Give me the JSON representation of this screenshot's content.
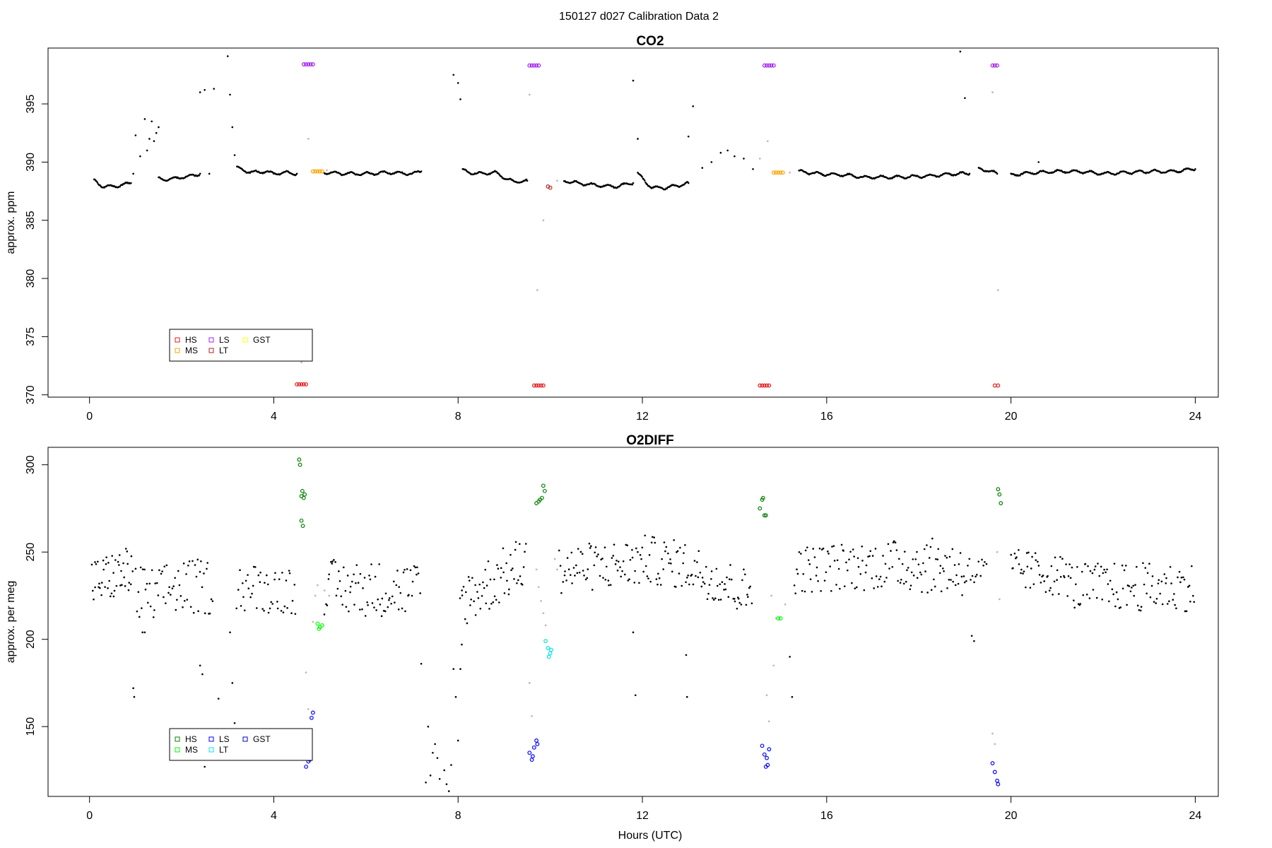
{
  "page_title": "150127   d027   Calibration Data 2",
  "x_axis_label": "Hours (UTC)",
  "legend_colors": {
    "HS_co2": "#e41a1c",
    "MS_co2": "#ffa500",
    "LS_co2": "#a020f0",
    "LT_co2": "#b22222",
    "GST_co2": "#ffff00",
    "HS_o2": "#008000",
    "MS_o2": "#00ff00",
    "LS_o2": "#0000ff",
    "LT_o2": "#00e5e5",
    "GST_o2": "#0000cd",
    "ambient": "#000000",
    "flush": "#bdbdbd"
  },
  "chart_data": [
    {
      "type": "scatter",
      "title": "CO2",
      "xlabel": "",
      "ylabel": "approx. ppm",
      "xlim": [
        -0.9,
        24.5
      ],
      "ylim": [
        369.8,
        399.8
      ],
      "xticks": [
        0,
        4,
        8,
        12,
        16,
        20,
        24
      ],
      "yticks": [
        370,
        375,
        380,
        385,
        390,
        395
      ],
      "legend": {
        "placement": "bottom-left",
        "entries": [
          "HS",
          "LS",
          "GST",
          "MS",
          "LT"
        ]
      },
      "ambient_segments": [
        {
          "x": [
            0.1,
            0.3,
            0.5,
            0.8,
            0.9
          ],
          "y": [
            388.4,
            387.9,
            387.9,
            388.1,
            388.2
          ]
        },
        {
          "x": [
            1.5,
            1.7,
            2.0,
            2.2,
            2.4
          ],
          "y": [
            388.6,
            388.5,
            388.7,
            388.8,
            389.0
          ]
        },
        {
          "x": [
            3.2,
            3.5,
            3.8,
            4.0,
            4.2,
            4.5
          ],
          "y": [
            389.5,
            389.1,
            389.2,
            389.0,
            389.1,
            389.0
          ]
        },
        {
          "x": [
            5.1,
            5.6,
            6.0,
            6.5,
            7.0,
            7.2
          ],
          "y": [
            389.1,
            389.0,
            389.0,
            389.1,
            389.0,
            389.2
          ]
        },
        {
          "x": [
            8.1,
            8.4,
            8.8,
            9.2,
            9.5
          ],
          "y": [
            389.3,
            389.0,
            389.1,
            388.3,
            388.4
          ]
        },
        {
          "x": [
            10.3,
            10.6,
            11.0,
            11.4,
            11.8
          ],
          "y": [
            388.4,
            388.2,
            388.0,
            387.9,
            388.2
          ]
        },
        {
          "x": [
            11.9,
            12.2,
            12.5,
            12.8,
            13.0
          ],
          "y": [
            389.0,
            387.8,
            387.8,
            388.0,
            388.2
          ]
        },
        {
          "x": [
            15.4,
            15.8,
            16.4,
            16.8,
            17.5,
            18.2,
            18.8,
            19.1
          ],
          "y": [
            389.2,
            389.0,
            388.9,
            388.7,
            388.7,
            388.8,
            389.0,
            389.0
          ]
        },
        {
          "x": [
            19.3,
            19.5,
            19.7
          ],
          "y": [
            389.4,
            389.3,
            389.0
          ]
        },
        {
          "x": [
            20.0,
            20.5,
            21.0,
            21.5,
            22.0,
            22.5,
            23.0,
            23.5,
            24.0
          ],
          "y": [
            388.9,
            389.1,
            389.2,
            389.2,
            389.0,
            389.1,
            389.2,
            389.2,
            389.4
          ]
        }
      ],
      "ambient_points": {
        "x": [
          0.95,
          1.0,
          1.1,
          1.2,
          1.25,
          1.3,
          1.35,
          1.4,
          1.45,
          1.5,
          2.4,
          2.5,
          2.6,
          2.7,
          3.0,
          3.05,
          3.1,
          3.15,
          7.9,
          8.0,
          8.05,
          11.8,
          11.9,
          13.0,
          13.1,
          13.3,
          13.5,
          13.7,
          13.85,
          14.0,
          14.2,
          14.4,
          18.9,
          19.0,
          20.6
        ],
        "y": [
          389.0,
          392.3,
          390.5,
          393.7,
          391.0,
          392.0,
          393.5,
          391.8,
          392.5,
          393.0,
          396.0,
          396.2,
          389.0,
          396.3,
          399.1,
          395.8,
          393.0,
          390.6,
          397.5,
          396.8,
          395.4,
          397.0,
          392.0,
          392.2,
          394.8,
          389.5,
          390.0,
          390.8,
          391.0,
          390.5,
          390.3,
          389.4,
          399.5,
          395.5,
          390.0
        ]
      },
      "flush_points": {
        "x": [
          4.6,
          4.75,
          5.15,
          9.55,
          9.72,
          9.85,
          10.15,
          14.55,
          14.72,
          15.2,
          19.6,
          19.72
        ],
        "y": [
          372.8,
          392.0,
          389.3,
          395.8,
          379.0,
          385.0,
          388.4,
          390.3,
          391.8,
          389.1,
          396.0,
          379.0
        ],
        "color": "flush"
      },
      "calibrations": [
        {
          "gas": "HS",
          "x": [
            4.5,
            4.55,
            4.6,
            4.65,
            4.7,
            9.65,
            9.7,
            9.75,
            9.8,
            9.85,
            14.55,
            14.6,
            14.65,
            14.7,
            14.75,
            19.65,
            19.72
          ],
          "y": [
            370.9,
            370.9,
            370.9,
            370.9,
            370.9,
            370.8,
            370.8,
            370.8,
            370.8,
            370.8,
            370.8,
            370.8,
            370.8,
            370.8,
            370.8,
            370.8,
            370.8
          ],
          "color": "HS_co2"
        },
        {
          "gas": "MS",
          "x": [
            4.85,
            4.9,
            4.95,
            5.0,
            5.05,
            14.85,
            14.9,
            14.95,
            15.0,
            15.05
          ],
          "y": [
            389.2,
            389.2,
            389.2,
            389.2,
            389.2,
            389.1,
            389.1,
            389.1,
            389.1,
            389.1
          ],
          "color": "MS_co2"
        },
        {
          "gas": "LS",
          "x": [
            4.65,
            4.7,
            4.75,
            4.8,
            4.85,
            9.55,
            9.6,
            9.65,
            9.7,
            9.75,
            14.65,
            14.7,
            14.75,
            14.8,
            14.85,
            19.6,
            19.65,
            19.7
          ],
          "y": [
            398.4,
            398.4,
            398.4,
            398.4,
            398.4,
            398.3,
            398.3,
            398.3,
            398.3,
            398.3,
            398.3,
            398.3,
            398.3,
            398.3,
            398.3,
            398.3,
            398.3,
            398.3
          ],
          "color": "LS_co2"
        },
        {
          "gas": "LT",
          "x": [
            9.95,
            10.0
          ],
          "y": [
            387.9,
            387.8
          ],
          "color": "LT_co2"
        }
      ]
    },
    {
      "type": "scatter",
      "title": "O2DIFF",
      "xlabel": "Hours (UTC)",
      "ylabel": "approx. per meg",
      "xlim": [
        -0.9,
        24.5
      ],
      "ylim": [
        110,
        310
      ],
      "xticks": [
        0,
        4,
        8,
        12,
        16,
        20,
        24
      ],
      "yticks": [
        150,
        200,
        250,
        300
      ],
      "legend": {
        "placement": "bottom-left",
        "entries": [
          "HS",
          "LS",
          "GST",
          "MS",
          "LT"
        ]
      },
      "ambient_bands": [
        {
          "x0": 0.05,
          "x1": 0.95,
          "center": [
            232,
            240
          ],
          "spread": 14,
          "n": 45
        },
        {
          "x0": 1.0,
          "x1": 1.6,
          "center": [
            226,
            222
          ],
          "spread": 18,
          "n": 22
        },
        {
          "x0": 1.6,
          "x1": 2.7,
          "center": [
            230,
            230
          ],
          "spread": 16,
          "n": 40
        },
        {
          "x0": 3.2,
          "x1": 4.5,
          "center": [
            230,
            228
          ],
          "spread": 14,
          "n": 45
        },
        {
          "x0": 5.1,
          "x1": 7.2,
          "center": [
            230,
            228
          ],
          "spread": 16,
          "n": 80
        },
        {
          "x0": 8.05,
          "x1": 9.5,
          "center": [
            222,
            245
          ],
          "spread": 16,
          "n": 60
        },
        {
          "x0": 10.2,
          "x1": 12.0,
          "center": [
            240,
            244
          ],
          "spread": 14,
          "n": 70
        },
        {
          "x0": 12.0,
          "x1": 13.0,
          "center": [
            246,
            242
          ],
          "spread": 14,
          "n": 40
        },
        {
          "x0": 13.0,
          "x1": 14.4,
          "center": [
            242,
            225
          ],
          "spread": 14,
          "n": 55
        },
        {
          "x0": 15.3,
          "x1": 17.5,
          "center": [
            240,
            243
          ],
          "spread": 14,
          "n": 80
        },
        {
          "x0": 17.5,
          "x1": 19.0,
          "center": [
            244,
            240
          ],
          "spread": 16,
          "n": 60
        },
        {
          "x0": 19.0,
          "x1": 19.5,
          "center": [
            238,
            238
          ],
          "spread": 10,
          "n": 15
        },
        {
          "x0": 20.0,
          "x1": 21.3,
          "center": [
            240,
            236
          ],
          "spread": 12,
          "n": 50
        },
        {
          "x0": 21.3,
          "x1": 24.0,
          "center": [
            230,
            230
          ],
          "spread": 14,
          "n": 100
        }
      ],
      "ambient_points": {
        "x": [
          0.95,
          0.97,
          1.15,
          1.2,
          2.4,
          2.45,
          2.5,
          2.8,
          3.05,
          3.1,
          3.15,
          7.2,
          7.3,
          7.35,
          7.4,
          7.45,
          7.5,
          7.55,
          7.6,
          7.7,
          7.75,
          7.8,
          7.85,
          7.9,
          7.95,
          8.0,
          8.05,
          8.08,
          11.8,
          11.85,
          12.95,
          12.97,
          19.15,
          19.2,
          15.2,
          15.25
        ],
        "y": [
          172,
          167,
          204,
          204,
          185,
          180,
          127,
          166,
          204,
          175,
          152,
          186,
          118,
          150,
          122,
          135,
          140,
          132,
          120,
          125,
          117,
          113,
          128,
          183,
          167,
          142,
          183,
          197,
          204,
          168,
          191,
          167,
          202,
          199,
          190,
          167
        ]
      },
      "flush_points": {
        "x": [
          4.7,
          4.75,
          4.8,
          4.85,
          4.9,
          4.95,
          5.1,
          5.2,
          9.55,
          9.6,
          9.7,
          9.75,
          9.8,
          9.85,
          9.9,
          10.1,
          10.15,
          14.7,
          14.75,
          14.8,
          14.85,
          14.9,
          15.1,
          19.6,
          19.65,
          19.7,
          19.75
        ],
        "y": [
          181,
          160,
          142,
          210,
          225,
          231,
          228,
          225,
          175,
          156,
          240,
          230,
          222,
          215,
          208,
          246,
          240,
          168,
          153,
          225,
          185,
          212,
          220,
          146,
          140,
          250,
          223
        ],
        "color": "flush"
      },
      "calibrations": [
        {
          "gas": "HS",
          "x": [
            4.55,
            4.57,
            4.6,
            4.62,
            4.65,
            4.67,
            4.6,
            4.63,
            9.7,
            9.75,
            9.78,
            9.82,
            9.85,
            9.88,
            14.55,
            14.6,
            14.62,
            14.65,
            14.68,
            19.72,
            19.75,
            19.78
          ],
          "y": [
            303,
            300,
            282,
            285,
            281,
            283,
            268,
            265,
            278,
            279,
            280,
            281,
            288,
            285,
            275,
            280,
            281,
            271,
            271,
            286,
            283,
            278
          ],
          "color": "HS_o2"
        },
        {
          "gas": "MS",
          "x": [
            4.95,
            5.0,
            5.05,
            4.98,
            14.95,
            15.0
          ],
          "y": [
            209,
            207,
            208,
            206,
            212,
            212
          ],
          "color": "MS_o2"
        },
        {
          "gas": "LS",
          "x": [
            4.65,
            4.7,
            4.75,
            4.8,
            4.82,
            4.85,
            4.78,
            9.55,
            9.6,
            9.65,
            9.7,
            9.62,
            9.72,
            14.6,
            14.65,
            14.7,
            14.75,
            14.68,
            14.72,
            19.6,
            19.65,
            19.7,
            19.72
          ],
          "y": [
            141,
            127,
            130,
            137,
            155,
            158,
            131,
            135,
            131,
            138,
            142,
            133,
            140,
            139,
            134,
            132,
            137,
            127,
            128,
            129,
            124,
            119,
            117
          ],
          "color": "LS_o2"
        },
        {
          "gas": "LT",
          "x": [
            9.9,
            9.95,
            10.0,
            9.97,
            10.02
          ],
          "y": [
            199,
            195,
            192,
            190,
            194
          ],
          "color": "LT_o2"
        }
      ]
    }
  ]
}
